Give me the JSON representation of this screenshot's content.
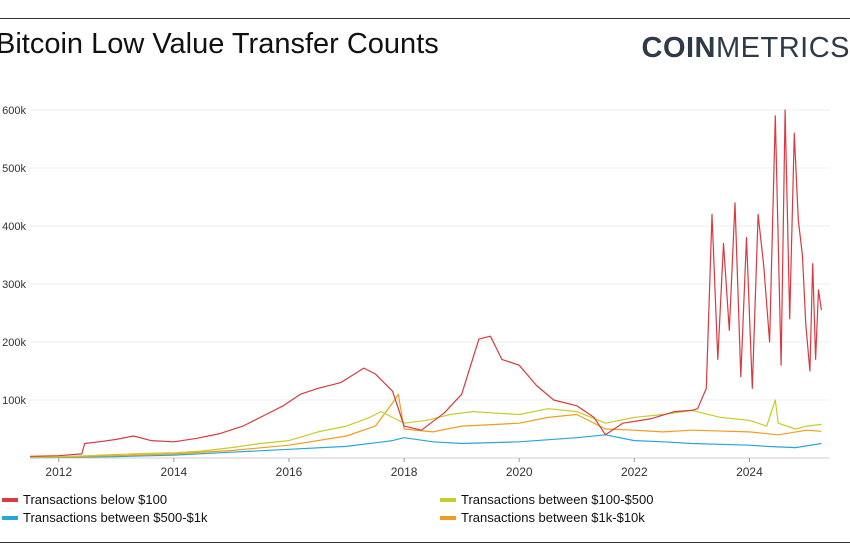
{
  "header": {
    "title": "Bitcoin Low Value Transfer Counts",
    "logo_bold": "COIN",
    "logo_light": "METRICS"
  },
  "chart_data": {
    "type": "line",
    "title": "Bitcoin Low Value Transfer Counts",
    "xlabel": "",
    "ylabel": "",
    "x_ticks": [
      "2012",
      "2014",
      "2016",
      "2018",
      "2020",
      "2022",
      "2024"
    ],
    "y_ticks": [
      "100k",
      "200k",
      "300k",
      "400k",
      "500k",
      "600k"
    ],
    "ylim": [
      0,
      600000
    ],
    "grid": true,
    "legend_position": "bottom",
    "series": [
      {
        "name": "Transactions below $100",
        "color": "#d93a3f",
        "points": [
          [
            2011.5,
            3000
          ],
          [
            2012.0,
            4000
          ],
          [
            2012.4,
            7000
          ],
          [
            2012.45,
            25000
          ],
          [
            2012.7,
            28000
          ],
          [
            2013.0,
            32000
          ],
          [
            2013.3,
            38000
          ],
          [
            2013.6,
            30000
          ],
          [
            2014.0,
            28000
          ],
          [
            2014.4,
            34000
          ],
          [
            2014.8,
            42000
          ],
          [
            2015.2,
            55000
          ],
          [
            2015.6,
            75000
          ],
          [
            2015.9,
            90000
          ],
          [
            2016.2,
            110000
          ],
          [
            2016.5,
            120000
          ],
          [
            2016.9,
            130000
          ],
          [
            2017.3,
            155000
          ],
          [
            2017.5,
            145000
          ],
          [
            2017.8,
            115000
          ],
          [
            2018.0,
            55000
          ],
          [
            2018.3,
            48000
          ],
          [
            2018.7,
            78000
          ],
          [
            2019.0,
            110000
          ],
          [
            2019.3,
            205000
          ],
          [
            2019.5,
            210000
          ],
          [
            2019.7,
            170000
          ],
          [
            2020.0,
            160000
          ],
          [
            2020.3,
            125000
          ],
          [
            2020.6,
            100000
          ],
          [
            2021.0,
            90000
          ],
          [
            2021.3,
            70000
          ],
          [
            2021.5,
            40000
          ],
          [
            2021.8,
            60000
          ],
          [
            2022.3,
            68000
          ],
          [
            2022.7,
            80000
          ],
          [
            2023.0,
            82000
          ],
          [
            2023.1,
            85000
          ],
          [
            2023.25,
            120000
          ],
          [
            2023.35,
            420000
          ],
          [
            2023.45,
            170000
          ],
          [
            2023.55,
            370000
          ],
          [
            2023.65,
            220000
          ],
          [
            2023.75,
            440000
          ],
          [
            2023.85,
            140000
          ],
          [
            2023.95,
            380000
          ],
          [
            2024.05,
            120000
          ],
          [
            2024.15,
            420000
          ],
          [
            2024.25,
            330000
          ],
          [
            2024.35,
            200000
          ],
          [
            2024.45,
            590000
          ],
          [
            2024.55,
            160000
          ],
          [
            2024.62,
            600000
          ],
          [
            2024.7,
            240000
          ],
          [
            2024.78,
            560000
          ],
          [
            2024.85,
            410000
          ],
          [
            2024.92,
            350000
          ],
          [
            2024.98,
            230000
          ],
          [
            2025.05,
            150000
          ],
          [
            2025.1,
            335000
          ],
          [
            2025.15,
            170000
          ],
          [
            2025.2,
            290000
          ],
          [
            2025.25,
            255000
          ]
        ]
      },
      {
        "name": "Transactions between $100-$500",
        "color": "#c5cd2a",
        "points": [
          [
            2011.5,
            1000
          ],
          [
            2012.0,
            2000
          ],
          [
            2012.5,
            4000
          ],
          [
            2013.0,
            6000
          ],
          [
            2013.5,
            8000
          ],
          [
            2014.0,
            9000
          ],
          [
            2014.5,
            12000
          ],
          [
            2015.0,
            18000
          ],
          [
            2015.5,
            25000
          ],
          [
            2016.0,
            30000
          ],
          [
            2016.5,
            45000
          ],
          [
            2017.0,
            55000
          ],
          [
            2017.4,
            70000
          ],
          [
            2017.6,
            80000
          ],
          [
            2017.8,
            70000
          ],
          [
            2018.0,
            60000
          ],
          [
            2018.4,
            65000
          ],
          [
            2018.8,
            75000
          ],
          [
            2019.2,
            80000
          ],
          [
            2019.5,
            78000
          ],
          [
            2020.0,
            75000
          ],
          [
            2020.5,
            85000
          ],
          [
            2021.0,
            80000
          ],
          [
            2021.5,
            60000
          ],
          [
            2022.0,
            70000
          ],
          [
            2022.5,
            75000
          ],
          [
            2023.0,
            82000
          ],
          [
            2023.5,
            70000
          ],
          [
            2024.0,
            65000
          ],
          [
            2024.3,
            55000
          ],
          [
            2024.45,
            100000
          ],
          [
            2024.5,
            60000
          ],
          [
            2024.8,
            50000
          ],
          [
            2025.0,
            55000
          ],
          [
            2025.25,
            58000
          ]
        ]
      },
      {
        "name": "Transactions between $500-$1k",
        "color": "#29a6d9",
        "points": [
          [
            2011.5,
            500
          ],
          [
            2012.0,
            1000
          ],
          [
            2013.0,
            2500
          ],
          [
            2014.0,
            5000
          ],
          [
            2015.0,
            10000
          ],
          [
            2016.0,
            15000
          ],
          [
            2017.0,
            20000
          ],
          [
            2017.8,
            30000
          ],
          [
            2018.0,
            35000
          ],
          [
            2018.5,
            28000
          ],
          [
            2019.0,
            25000
          ],
          [
            2020.0,
            28000
          ],
          [
            2021.0,
            35000
          ],
          [
            2021.5,
            40000
          ],
          [
            2022.0,
            30000
          ],
          [
            2022.5,
            28000
          ],
          [
            2023.0,
            25000
          ],
          [
            2024.0,
            22000
          ],
          [
            2024.3,
            20000
          ],
          [
            2024.8,
            18000
          ],
          [
            2025.25,
            25000
          ]
        ]
      },
      {
        "name": "Transactions between $1k-$10k",
        "color": "#f29d1f",
        "points": [
          [
            2011.5,
            1000
          ],
          [
            2012.0,
            1500
          ],
          [
            2013.0,
            4000
          ],
          [
            2014.0,
            7000
          ],
          [
            2015.0,
            13000
          ],
          [
            2016.0,
            22000
          ],
          [
            2017.0,
            38000
          ],
          [
            2017.5,
            55000
          ],
          [
            2017.8,
            95000
          ],
          [
            2017.9,
            110000
          ],
          [
            2018.0,
            50000
          ],
          [
            2018.5,
            45000
          ],
          [
            2019.0,
            55000
          ],
          [
            2020.0,
            60000
          ],
          [
            2020.5,
            70000
          ],
          [
            2021.0,
            75000
          ],
          [
            2021.5,
            50000
          ],
          [
            2022.0,
            48000
          ],
          [
            2022.5,
            45000
          ],
          [
            2023.0,
            48000
          ],
          [
            2024.0,
            45000
          ],
          [
            2024.5,
            40000
          ],
          [
            2025.0,
            48000
          ],
          [
            2025.25,
            46000
          ]
        ]
      }
    ]
  }
}
